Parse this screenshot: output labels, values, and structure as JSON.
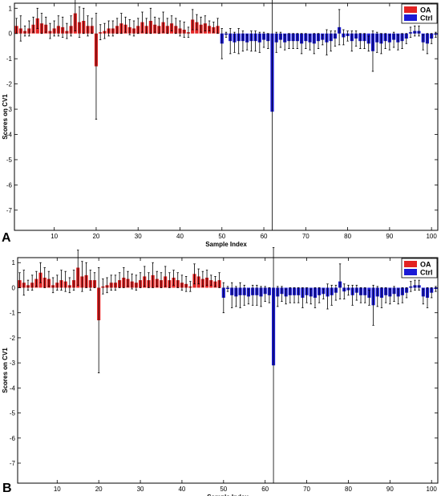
{
  "chart_data": [
    {
      "panel_label": "A",
      "type": "bar",
      "xlabel": "Sample Index",
      "ylabel": "Scores on CV1",
      "xlim": [
        0.5,
        101.5
      ],
      "ylim": [
        -7.8,
        1.2
      ],
      "xticks": [
        10,
        20,
        30,
        40,
        50,
        60,
        70,
        80,
        90,
        100
      ],
      "yticks": [
        1,
        0,
        -1,
        -2,
        -3,
        -4,
        -5,
        -6,
        -7
      ],
      "legend": {
        "position": "top-right",
        "entries": [
          "OA",
          "Ctrl"
        ]
      },
      "colors": {
        "OA": "#e32222",
        "Ctrl": "#1a1ad6"
      },
      "series": [
        {
          "name": "OA",
          "x": [
            1,
            2,
            3,
            4,
            5,
            6,
            7,
            8,
            9,
            10,
            11,
            12,
            13,
            14,
            15,
            16,
            17,
            18,
            19,
            20,
            21,
            22,
            23,
            24,
            25,
            26,
            27,
            28,
            29,
            30,
            31,
            32,
            33,
            34,
            35,
            36,
            37,
            38,
            39,
            40,
            41,
            42,
            43,
            44,
            45,
            46,
            47,
            48,
            49
          ],
          "values": [
            0.3,
            0.2,
            0.1,
            0.2,
            0.35,
            0.6,
            0.4,
            0.35,
            0.1,
            0.2,
            0.3,
            0.25,
            0.1,
            0.3,
            0.8,
            0.45,
            0.5,
            0.3,
            0.3,
            -1.3,
            0.05,
            0.1,
            0.2,
            0.2,
            0.3,
            0.4,
            0.35,
            0.25,
            0.2,
            0.3,
            0.45,
            0.3,
            0.5,
            0.35,
            0.3,
            0.45,
            0.3,
            0.4,
            0.3,
            0.2,
            0.15,
            0.05,
            0.55,
            0.45,
            0.35,
            0.4,
            0.3,
            0.25,
            0.3
          ],
          "errors": [
            0.3,
            0.5,
            0.2,
            0.3,
            0.3,
            0.4,
            0.4,
            0.3,
            0.3,
            0.3,
            0.4,
            0.4,
            0.3,
            0.4,
            0.7,
            0.6,
            0.5,
            0.4,
            0.3,
            2.1,
            0.3,
            0.3,
            0.3,
            0.3,
            0.3,
            0.4,
            0.3,
            0.3,
            0.3,
            0.3,
            0.4,
            0.3,
            0.5,
            0.3,
            0.3,
            0.4,
            0.3,
            0.3,
            0.3,
            0.3,
            0.3,
            0.2,
            0.4,
            0.3,
            0.3,
            0.3,
            0.2,
            0.2,
            0.3
          ]
        },
        {
          "name": "Ctrl",
          "x": [
            50,
            51,
            52,
            53,
            54,
            55,
            56,
            57,
            58,
            59,
            60,
            61,
            62,
            63,
            64,
            65,
            66,
            67,
            68,
            69,
            70,
            71,
            72,
            73,
            74,
            75,
            76,
            77,
            78,
            79,
            80,
            81,
            82,
            83,
            84,
            85,
            86,
            87,
            88,
            89,
            90,
            91,
            92,
            93,
            94,
            95,
            96,
            97,
            98,
            99,
            100,
            101
          ],
          "values": [
            -0.4,
            -0.05,
            -0.3,
            -0.35,
            -0.3,
            -0.3,
            -0.35,
            -0.3,
            -0.3,
            -0.35,
            -0.25,
            -0.3,
            -3.1,
            -0.35,
            -0.25,
            -0.35,
            -0.3,
            -0.3,
            -0.3,
            -0.4,
            -0.3,
            -0.35,
            -0.4,
            -0.3,
            -0.25,
            -0.35,
            -0.3,
            -0.2,
            0.25,
            -0.15,
            -0.1,
            -0.3,
            -0.2,
            -0.3,
            -0.3,
            -0.4,
            -0.7,
            -0.35,
            -0.4,
            -0.3,
            -0.35,
            -0.25,
            -0.35,
            -0.3,
            -0.2,
            0.05,
            0.1,
            0.1,
            -0.35,
            -0.4,
            -0.2,
            -0.05
          ],
          "errors": [
            0.6,
            0.1,
            0.5,
            0.4,
            0.5,
            0.4,
            0.3,
            0.4,
            0.4,
            0.4,
            0.3,
            0.3,
            4.7,
            0.4,
            0.3,
            0.3,
            0.3,
            0.3,
            0.3,
            0.4,
            0.3,
            0.3,
            0.4,
            0.3,
            0.2,
            0.5,
            0.4,
            0.3,
            0.7,
            0.3,
            0.2,
            0.4,
            0.3,
            0.3,
            0.3,
            0.3,
            0.8,
            0.4,
            0.4,
            0.3,
            0.3,
            0.3,
            0.3,
            0.3,
            0.2,
            0.2,
            0.2,
            0.2,
            0.3,
            0.4,
            0.2,
            0.1
          ]
        }
      ]
    },
    {
      "panel_label": "B",
      "type": "bar",
      "xlabel": "Sample Index",
      "ylabel": "Scores on CV1",
      "xlim": [
        0.5,
        101.5
      ],
      "ylim": [
        -7.8,
        1.2
      ],
      "xticks": [
        10,
        20,
        30,
        40,
        50,
        60,
        70,
        80,
        90,
        100
      ],
      "yticks": [
        1,
        0,
        -1,
        -2,
        -3,
        -4,
        -5,
        -6,
        -7
      ],
      "legend": {
        "position": "top-right",
        "entries": [
          "OA",
          "Ctrl"
        ]
      },
      "colors": {
        "OA": "#e32222",
        "Ctrl": "#1a1ad6"
      },
      "series": [
        {
          "name": "OA",
          "x": [
            1,
            2,
            3,
            4,
            5,
            6,
            7,
            8,
            9,
            10,
            11,
            12,
            13,
            14,
            15,
            16,
            17,
            18,
            19,
            20,
            21,
            22,
            23,
            24,
            25,
            26,
            27,
            28,
            29,
            30,
            31,
            32,
            33,
            34,
            35,
            36,
            37,
            38,
            39,
            40,
            41,
            42,
            43,
            44,
            45,
            46,
            47,
            48,
            49
          ],
          "values": [
            0.3,
            0.2,
            0.1,
            0.2,
            0.35,
            0.6,
            0.4,
            0.35,
            0.1,
            0.2,
            0.3,
            0.25,
            0.1,
            0.3,
            0.8,
            0.45,
            0.5,
            0.3,
            0.3,
            -1.3,
            0.05,
            0.1,
            0.2,
            0.2,
            0.3,
            0.4,
            0.35,
            0.25,
            0.2,
            0.3,
            0.45,
            0.3,
            0.5,
            0.35,
            0.3,
            0.45,
            0.3,
            0.4,
            0.3,
            0.2,
            0.15,
            0.05,
            0.55,
            0.45,
            0.35,
            0.4,
            0.3,
            0.25,
            0.3
          ],
          "errors": [
            0.3,
            0.5,
            0.2,
            0.3,
            0.3,
            0.4,
            0.4,
            0.3,
            0.3,
            0.3,
            0.4,
            0.4,
            0.3,
            0.4,
            0.7,
            0.6,
            0.5,
            0.4,
            0.3,
            2.1,
            0.3,
            0.3,
            0.3,
            0.3,
            0.3,
            0.4,
            0.3,
            0.3,
            0.3,
            0.3,
            0.4,
            0.3,
            0.5,
            0.3,
            0.3,
            0.4,
            0.3,
            0.3,
            0.3,
            0.3,
            0.3,
            0.2,
            0.4,
            0.3,
            0.3,
            0.3,
            0.2,
            0.2,
            0.3
          ]
        },
        {
          "name": "Ctrl",
          "x": [
            50,
            51,
            52,
            53,
            54,
            55,
            56,
            57,
            58,
            59,
            60,
            61,
            62,
            63,
            64,
            65,
            66,
            67,
            68,
            69,
            70,
            71,
            72,
            73,
            74,
            75,
            76,
            77,
            78,
            79,
            80,
            81,
            82,
            83,
            84,
            85,
            86,
            87,
            88,
            89,
            90,
            91,
            92,
            93,
            94,
            95,
            96,
            97,
            98,
            99,
            100,
            101
          ],
          "values": [
            -0.4,
            -0.05,
            -0.3,
            -0.35,
            -0.3,
            -0.3,
            -0.35,
            -0.3,
            -0.3,
            -0.35,
            -0.25,
            -0.3,
            -3.1,
            -0.35,
            -0.25,
            -0.35,
            -0.3,
            -0.3,
            -0.3,
            -0.4,
            -0.3,
            -0.35,
            -0.4,
            -0.3,
            -0.25,
            -0.35,
            -0.3,
            -0.2,
            0.25,
            -0.15,
            -0.1,
            -0.3,
            -0.2,
            -0.3,
            -0.3,
            -0.4,
            -0.7,
            -0.35,
            -0.4,
            -0.3,
            -0.35,
            -0.25,
            -0.35,
            -0.3,
            -0.2,
            0.05,
            0.1,
            0.1,
            -0.35,
            -0.4,
            -0.2,
            -0.05
          ],
          "errors": [
            0.6,
            0.1,
            0.5,
            0.4,
            0.5,
            0.4,
            0.3,
            0.4,
            0.4,
            0.4,
            0.3,
            0.3,
            4.7,
            0.4,
            0.3,
            0.3,
            0.3,
            0.3,
            0.3,
            0.4,
            0.3,
            0.3,
            0.4,
            0.3,
            0.2,
            0.5,
            0.4,
            0.3,
            0.7,
            0.3,
            0.2,
            0.4,
            0.3,
            0.3,
            0.3,
            0.3,
            0.8,
            0.4,
            0.4,
            0.3,
            0.3,
            0.3,
            0.3,
            0.3,
            0.2,
            0.2,
            0.2,
            0.2,
            0.3,
            0.4,
            0.2,
            0.1
          ]
        }
      ]
    }
  ]
}
